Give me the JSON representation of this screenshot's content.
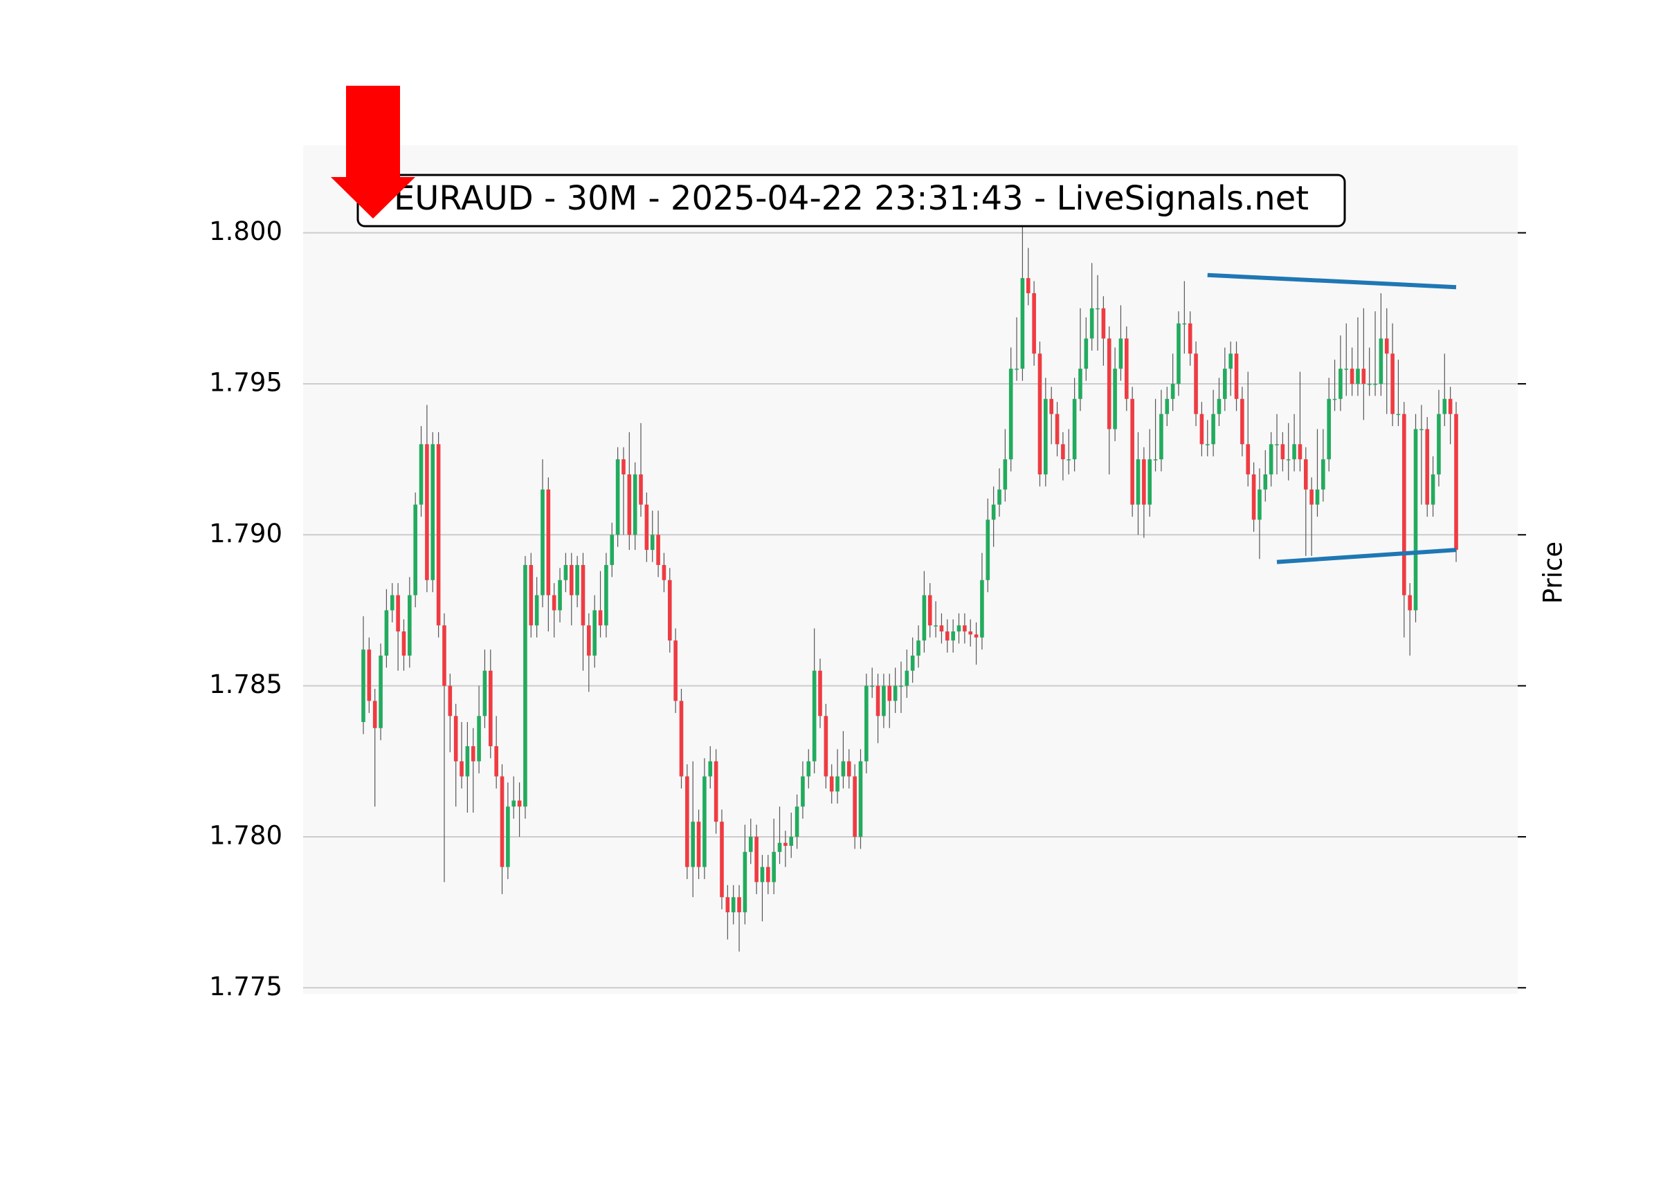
{
  "chart_data": {
    "type": "candlestick",
    "title": "EURAUD - 30M - 2025-04-22 23:31:43 - LiveSignals.net",
    "ylabel": "Price",
    "ylim": [
      1.7748,
      1.8029
    ],
    "yticks": [
      {
        "value": 1.775,
        "label": "1.775"
      },
      {
        "value": 1.78,
        "label": "1.780"
      },
      {
        "value": 1.785,
        "label": "1.785"
      },
      {
        "value": 1.79,
        "label": "1.790"
      },
      {
        "value": 1.795,
        "label": "1.795"
      },
      {
        "value": 1.8,
        "label": "1.800"
      }
    ],
    "grid": true,
    "up_color": "#22ab5e",
    "down_color": "#ef3b42",
    "wick_color": "#555555",
    "ohlc": [
      [
        1.7838,
        1.7873,
        1.7834,
        1.7862
      ],
      [
        1.7862,
        1.7866,
        1.7841,
        1.7845
      ],
      [
        1.7845,
        1.7849,
        1.781,
        1.7836
      ],
      [
        1.7836,
        1.7864,
        1.7832,
        1.786
      ],
      [
        1.786,
        1.7882,
        1.7856,
        1.7875
      ],
      [
        1.7875,
        1.7884,
        1.7871,
        1.788
      ],
      [
        1.788,
        1.7884,
        1.7855,
        1.7868
      ],
      [
        1.7868,
        1.7872,
        1.7855,
        1.786
      ],
      [
        1.786,
        1.7886,
        1.7856,
        1.788
      ],
      [
        1.788,
        1.7914,
        1.7876,
        1.791
      ],
      [
        1.791,
        1.7936,
        1.7906,
        1.793
      ],
      [
        1.793,
        1.7943,
        1.7881,
        1.7885
      ],
      [
        1.7885,
        1.7934,
        1.7881,
        1.793
      ],
      [
        1.793,
        1.7934,
        1.7866,
        1.787
      ],
      [
        1.787,
        1.7874,
        1.7785,
        1.785
      ],
      [
        1.785,
        1.7854,
        1.7828,
        1.784
      ],
      [
        1.784,
        1.7844,
        1.781,
        1.7825
      ],
      [
        1.7825,
        1.7838,
        1.7816,
        1.782
      ],
      [
        1.782,
        1.7838,
        1.7808,
        1.783
      ],
      [
        1.783,
        1.7836,
        1.7808,
        1.7825
      ],
      [
        1.7825,
        1.785,
        1.7821,
        1.784
      ],
      [
        1.784,
        1.7862,
        1.7836,
        1.7855
      ],
      [
        1.7855,
        1.7862,
        1.7826,
        1.783
      ],
      [
        1.783,
        1.784,
        1.7816,
        1.782
      ],
      [
        1.782,
        1.7824,
        1.7781,
        1.779
      ],
      [
        1.779,
        1.7818,
        1.7786,
        1.781
      ],
      [
        1.781,
        1.782,
        1.7806,
        1.7812
      ],
      [
        1.7812,
        1.7818,
        1.78,
        1.781
      ],
      [
        1.781,
        1.7893,
        1.7806,
        1.789
      ],
      [
        1.789,
        1.7894,
        1.7866,
        1.787
      ],
      [
        1.787,
        1.7886,
        1.7866,
        1.788
      ],
      [
        1.788,
        1.7925,
        1.7876,
        1.7915
      ],
      [
        1.7915,
        1.7919,
        1.7868,
        1.788
      ],
      [
        1.788,
        1.7884,
        1.7866,
        1.7875
      ],
      [
        1.7875,
        1.7889,
        1.7871,
        1.7885
      ],
      [
        1.7885,
        1.7894,
        1.7881,
        1.789
      ],
      [
        1.789,
        1.7894,
        1.787,
        1.788
      ],
      [
        1.788,
        1.7893,
        1.7876,
        1.789
      ],
      [
        1.789,
        1.7894,
        1.7855,
        1.787
      ],
      [
        1.787,
        1.7874,
        1.7848,
        1.786
      ],
      [
        1.786,
        1.788,
        1.7856,
        1.7875
      ],
      [
        1.7875,
        1.7888,
        1.7866,
        1.787
      ],
      [
        1.787,
        1.7894,
        1.7866,
        1.789
      ],
      [
        1.789,
        1.7904,
        1.7886,
        1.79
      ],
      [
        1.79,
        1.7929,
        1.7896,
        1.7925
      ],
      [
        1.7925,
        1.7929,
        1.79,
        1.792
      ],
      [
        1.792,
        1.7934,
        1.7895,
        1.79
      ],
      [
        1.79,
        1.7924,
        1.7895,
        1.792
      ],
      [
        1.792,
        1.7937,
        1.7906,
        1.791
      ],
      [
        1.791,
        1.7914,
        1.7891,
        1.7895
      ],
      [
        1.7895,
        1.7908,
        1.7891,
        1.79
      ],
      [
        1.79,
        1.7908,
        1.7886,
        1.789
      ],
      [
        1.789,
        1.7894,
        1.7881,
        1.7885
      ],
      [
        1.7885,
        1.7889,
        1.7861,
        1.7865
      ],
      [
        1.7865,
        1.7869,
        1.7841,
        1.7845
      ],
      [
        1.7845,
        1.7849,
        1.7816,
        1.782
      ],
      [
        1.782,
        1.7824,
        1.7786,
        1.779
      ],
      [
        1.779,
        1.7825,
        1.778,
        1.7805
      ],
      [
        1.7805,
        1.7809,
        1.7786,
        1.779
      ],
      [
        1.779,
        1.7826,
        1.7786,
        1.782
      ],
      [
        1.782,
        1.783,
        1.7816,
        1.7825
      ],
      [
        1.7825,
        1.7829,
        1.7801,
        1.7805
      ],
      [
        1.7805,
        1.7809,
        1.7776,
        1.778
      ],
      [
        1.778,
        1.7784,
        1.7766,
        1.7775
      ],
      [
        1.7775,
        1.7784,
        1.7771,
        1.778
      ],
      [
        1.778,
        1.7784,
        1.7762,
        1.7775
      ],
      [
        1.7775,
        1.7804,
        1.7771,
        1.7795
      ],
      [
        1.7795,
        1.7806,
        1.7791,
        1.78
      ],
      [
        1.78,
        1.7804,
        1.7781,
        1.7785
      ],
      [
        1.7785,
        1.7794,
        1.7772,
        1.779
      ],
      [
        1.779,
        1.7794,
        1.7781,
        1.7785
      ],
      [
        1.7785,
        1.7806,
        1.7781,
        1.7795
      ],
      [
        1.7795,
        1.781,
        1.7791,
        1.7798
      ],
      [
        1.7798,
        1.7802,
        1.779,
        1.7797
      ],
      [
        1.7797,
        1.7808,
        1.7793,
        1.78
      ],
      [
        1.78,
        1.7814,
        1.7796,
        1.781
      ],
      [
        1.781,
        1.7825,
        1.7806,
        1.782
      ],
      [
        1.782,
        1.7829,
        1.7816,
        1.7825
      ],
      [
        1.7825,
        1.7869,
        1.7821,
        1.7855
      ],
      [
        1.7855,
        1.7859,
        1.7836,
        1.784
      ],
      [
        1.784,
        1.7844,
        1.7816,
        1.782
      ],
      [
        1.782,
        1.7824,
        1.7811,
        1.7815
      ],
      [
        1.7815,
        1.7829,
        1.7811,
        1.782
      ],
      [
        1.782,
        1.7835,
        1.7816,
        1.7825
      ],
      [
        1.7825,
        1.7829,
        1.7816,
        1.782
      ],
      [
        1.782,
        1.7824,
        1.7796,
        1.78
      ],
      [
        1.78,
        1.7829,
        1.7796,
        1.7825
      ],
      [
        1.7825,
        1.7854,
        1.7821,
        1.785
      ],
      [
        1.785,
        1.7856,
        1.7846,
        1.785
      ],
      [
        1.785,
        1.7854,
        1.7831,
        1.784
      ],
      [
        1.784,
        1.7854,
        1.7836,
        1.785
      ],
      [
        1.785,
        1.7854,
        1.7836,
        1.7845
      ],
      [
        1.7845,
        1.7856,
        1.7841,
        1.785
      ],
      [
        1.785,
        1.7858,
        1.7841,
        1.785
      ],
      [
        1.785,
        1.7862,
        1.7846,
        1.7855
      ],
      [
        1.7855,
        1.7866,
        1.7851,
        1.786
      ],
      [
        1.786,
        1.787,
        1.7856,
        1.7865
      ],
      [
        1.7865,
        1.7888,
        1.7861,
        1.788
      ],
      [
        1.788,
        1.7884,
        1.7866,
        1.787
      ],
      [
        1.787,
        1.7878,
        1.7866,
        1.787
      ],
      [
        1.787,
        1.7874,
        1.7864,
        1.7868
      ],
      [
        1.7868,
        1.7872,
        1.7861,
        1.7865
      ],
      [
        1.7865,
        1.7872,
        1.7861,
        1.7868
      ],
      [
        1.7868,
        1.7874,
        1.7864,
        1.787
      ],
      [
        1.787,
        1.7874,
        1.7864,
        1.7868
      ],
      [
        1.7868,
        1.7872,
        1.7863,
        1.7867
      ],
      [
        1.7867,
        1.7871,
        1.7857,
        1.7866
      ],
      [
        1.7866,
        1.7894,
        1.7862,
        1.7885
      ],
      [
        1.7885,
        1.7912,
        1.7881,
        1.7905
      ],
      [
        1.7905,
        1.7916,
        1.7896,
        1.791
      ],
      [
        1.791,
        1.7922,
        1.7906,
        1.7915
      ],
      [
        1.7915,
        1.7935,
        1.7911,
        1.7925
      ],
      [
        1.7925,
        1.7962,
        1.7921,
        1.7955
      ],
      [
        1.7955,
        1.7972,
        1.7951,
        1.7955
      ],
      [
        1.7955,
        1.8002,
        1.7951,
        1.7985
      ],
      [
        1.7985,
        1.7995,
        1.7976,
        1.798
      ],
      [
        1.798,
        1.7984,
        1.7956,
        1.796
      ],
      [
        1.796,
        1.7964,
        1.7916,
        1.792
      ],
      [
        1.792,
        1.7952,
        1.7916,
        1.7945
      ],
      [
        1.7945,
        1.7949,
        1.793,
        1.794
      ],
      [
        1.794,
        1.7944,
        1.7926,
        1.793
      ],
      [
        1.793,
        1.7934,
        1.7918,
        1.7925
      ],
      [
        1.7925,
        1.7935,
        1.792,
        1.7925
      ],
      [
        1.7925,
        1.7952,
        1.7921,
        1.7945
      ],
      [
        1.7945,
        1.7975,
        1.7941,
        1.7955
      ],
      [
        1.7955,
        1.7972,
        1.7951,
        1.7965
      ],
      [
        1.7965,
        1.799,
        1.7961,
        1.7975
      ],
      [
        1.7975,
        1.7986,
        1.7961,
        1.7975
      ],
      [
        1.7975,
        1.7979,
        1.7956,
        1.7965
      ],
      [
        1.7965,
        1.7969,
        1.792,
        1.7935
      ],
      [
        1.7935,
        1.7962,
        1.7931,
        1.7955
      ],
      [
        1.7955,
        1.7976,
        1.7951,
        1.7965
      ],
      [
        1.7965,
        1.7969,
        1.7941,
        1.7945
      ],
      [
        1.7945,
        1.7949,
        1.7906,
        1.791
      ],
      [
        1.791,
        1.7934,
        1.79,
        1.7925
      ],
      [
        1.7925,
        1.7929,
        1.7899,
        1.791
      ],
      [
        1.791,
        1.7935,
        1.7906,
        1.7925
      ],
      [
        1.7925,
        1.7945,
        1.7921,
        1.7925
      ],
      [
        1.7925,
        1.7948,
        1.7921,
        1.794
      ],
      [
        1.794,
        1.7949,
        1.7936,
        1.7945
      ],
      [
        1.7945,
        1.796,
        1.7941,
        1.795
      ],
      [
        1.795,
        1.7974,
        1.7946,
        1.797
      ],
      [
        1.797,
        1.7984,
        1.796,
        1.797
      ],
      [
        1.797,
        1.7974,
        1.7956,
        1.796
      ],
      [
        1.796,
        1.7964,
        1.7936,
        1.794
      ],
      [
        1.794,
        1.7944,
        1.7926,
        1.793
      ],
      [
        1.793,
        1.7938,
        1.7926,
        1.793
      ],
      [
        1.793,
        1.7948,
        1.7926,
        1.794
      ],
      [
        1.794,
        1.7952,
        1.7936,
        1.7945
      ],
      [
        1.7945,
        1.7962,
        1.7941,
        1.7955
      ],
      [
        1.7955,
        1.7964,
        1.7946,
        1.796
      ],
      [
        1.796,
        1.7964,
        1.7941,
        1.7945
      ],
      [
        1.7945,
        1.7949,
        1.7926,
        1.793
      ],
      [
        1.793,
        1.7954,
        1.7916,
        1.792
      ],
      [
        1.792,
        1.7924,
        1.7901,
        1.7905
      ],
      [
        1.7905,
        1.7922,
        1.7892,
        1.7915
      ],
      [
        1.7915,
        1.7928,
        1.7911,
        1.792
      ],
      [
        1.792,
        1.7934,
        1.7916,
        1.793
      ],
      [
        1.793,
        1.794,
        1.792,
        1.793
      ],
      [
        1.793,
        1.7934,
        1.7921,
        1.7925
      ],
      [
        1.7925,
        1.7937,
        1.7918,
        1.7925
      ],
      [
        1.7925,
        1.794,
        1.7921,
        1.793
      ],
      [
        1.793,
        1.7954,
        1.7921,
        1.7925
      ],
      [
        1.7925,
        1.7929,
        1.7893,
        1.7915
      ],
      [
        1.7915,
        1.7919,
        1.7893,
        1.791
      ],
      [
        1.791,
        1.7935,
        1.7906,
        1.7915
      ],
      [
        1.7915,
        1.7935,
        1.7911,
        1.7925
      ],
      [
        1.7925,
        1.7952,
        1.7921,
        1.7945
      ],
      [
        1.7945,
        1.7958,
        1.7941,
        1.7945
      ],
      [
        1.7945,
        1.7966,
        1.7941,
        1.7955
      ],
      [
        1.7955,
        1.797,
        1.7946,
        1.7955
      ],
      [
        1.7955,
        1.7962,
        1.7946,
        1.795
      ],
      [
        1.795,
        1.7972,
        1.7946,
        1.7955
      ],
      [
        1.7955,
        1.7975,
        1.7938,
        1.795
      ],
      [
        1.795,
        1.7962,
        1.7946,
        1.795
      ],
      [
        1.795,
        1.7974,
        1.7946,
        1.795
      ],
      [
        1.795,
        1.798,
        1.7946,
        1.7965
      ],
      [
        1.7965,
        1.7975,
        1.794,
        1.796
      ],
      [
        1.796,
        1.797,
        1.7936,
        1.794
      ],
      [
        1.794,
        1.7958,
        1.7936,
        1.794
      ],
      [
        1.794,
        1.7944,
        1.7866,
        1.788
      ],
      [
        1.788,
        1.7884,
        1.786,
        1.7875
      ],
      [
        1.7875,
        1.794,
        1.7871,
        1.7935
      ],
      [
        1.7935,
        1.7943,
        1.791,
        1.7935
      ],
      [
        1.7935,
        1.7939,
        1.7906,
        1.791
      ],
      [
        1.791,
        1.7926,
        1.7906,
        1.792
      ],
      [
        1.792,
        1.7948,
        1.7916,
        1.794
      ],
      [
        1.794,
        1.796,
        1.7936,
        1.7945
      ],
      [
        1.7945,
        1.7949,
        1.793,
        1.794
      ],
      [
        1.794,
        1.7944,
        1.7891,
        1.7895
      ]
    ],
    "trendlines": [
      {
        "color": "#1f77b4",
        "x": [
          146,
          189
        ],
        "y": [
          1.7986,
          1.7982
        ]
      },
      {
        "color": "#1f77b4",
        "x": [
          158,
          189
        ],
        "y": [
          1.7891,
          1.7895
        ]
      }
    ]
  }
}
